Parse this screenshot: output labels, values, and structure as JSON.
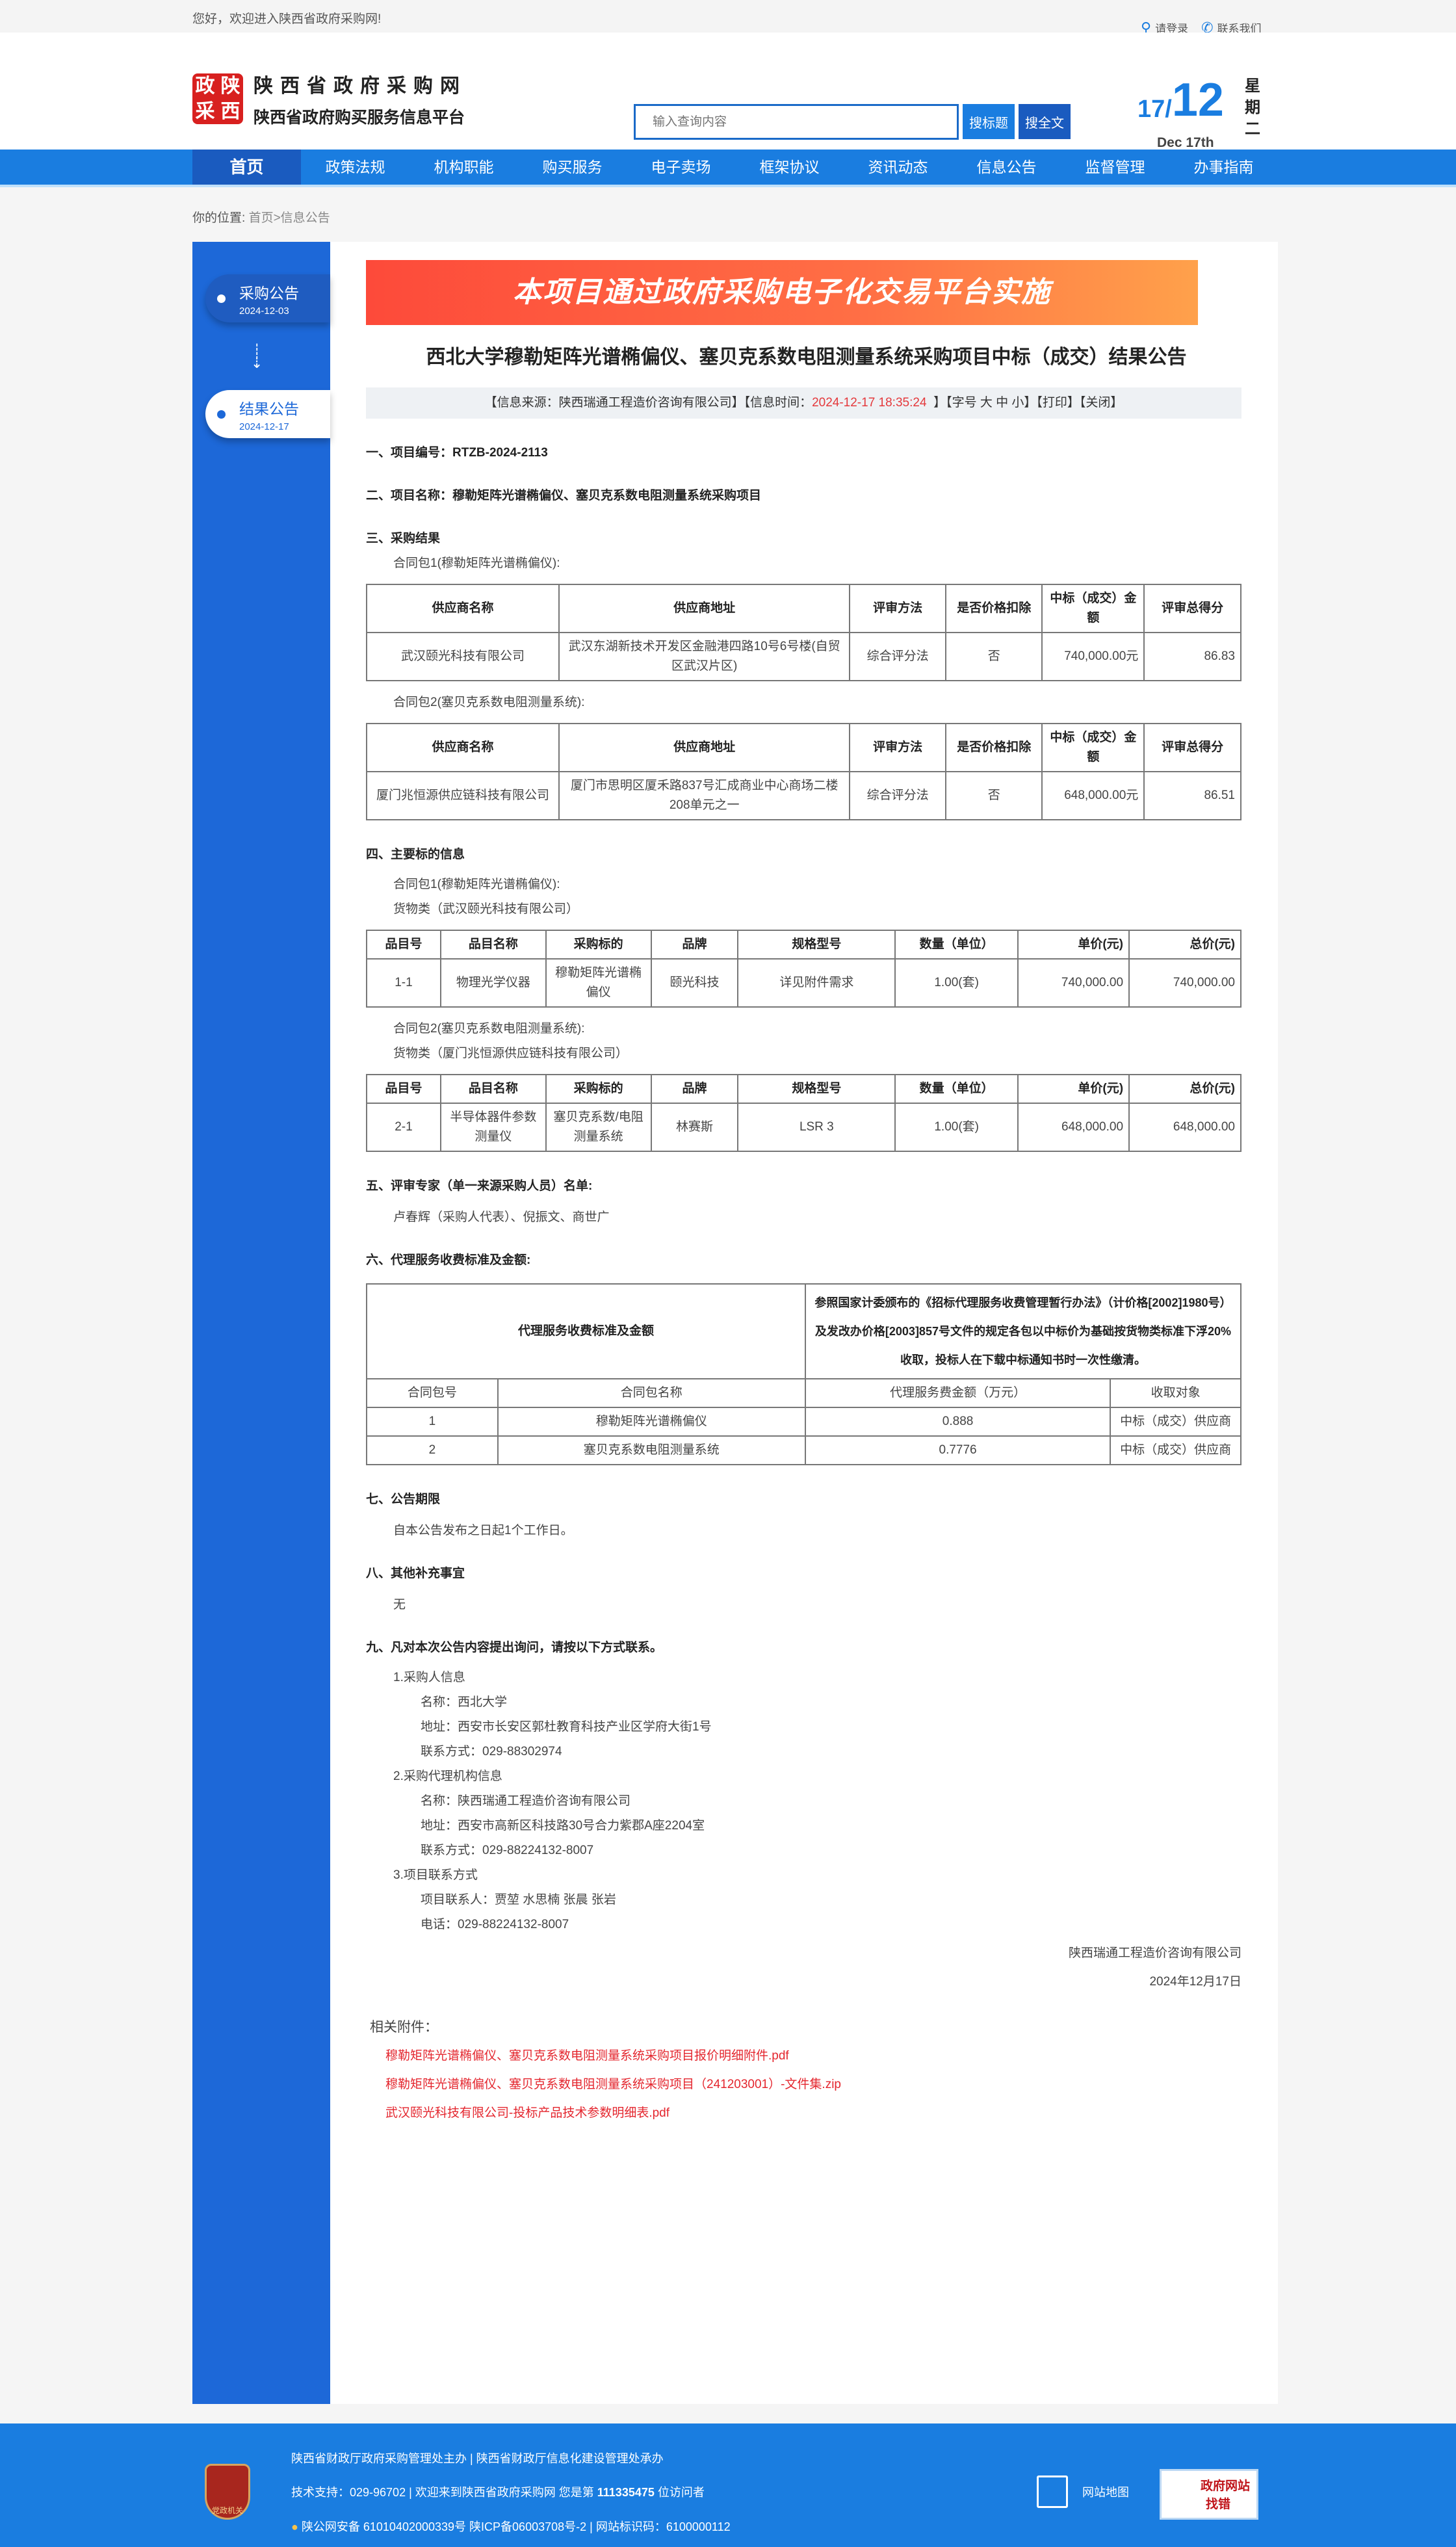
{
  "topbar": {
    "welcome": "您好，欢迎进入陕西省政府采购网!",
    "login": "请登录",
    "contact": "联系我们"
  },
  "header": {
    "logo_mark": [
      "政",
      "陕",
      "采",
      "西"
    ],
    "site_name": "陕西省政府采购网",
    "site_subtitle": "陕西省政府购买服务信息平台",
    "search_placeholder": "输入查询内容",
    "search_title_btn": "搜标题",
    "search_full_btn": "搜全文",
    "date_day": "17/",
    "date_month": "12",
    "date_en": "Dec 17th",
    "weekday": "星期二"
  },
  "nav": [
    "首页",
    "政策法规",
    "机构职能",
    "购买服务",
    "电子卖场",
    "框架协议",
    "资讯动态",
    "信息公告",
    "监督管理",
    "办事指南"
  ],
  "breadcrumb": {
    "label": "你的位置:",
    "home": "首页",
    "current": ">信息公告"
  },
  "sidebar": [
    {
      "label": "采购公告",
      "date": "2024-12-03"
    },
    {
      "label": "结果公告",
      "date": "2024-12-17"
    }
  ],
  "article": {
    "banner": "本项目通过政府采购电子化交易平台实施",
    "title": "西北大学穆勒矩阵光谱椭偏仪、塞贝克系数电阻测量系统采购项目中标（成交）结果公告",
    "info": {
      "source": "【信息来源：陕西瑞通工程造价咨询有限公司】【信息时间：",
      "time": "2024-12-17 18:35:24",
      "rest": "】【字号 大 中 小】【打印】【关闭】"
    },
    "s1": "一、项目编号：RTZB-2024-2113",
    "s2": "二、项目名称：穆勒矩阵光谱椭偏仪、塞贝克系数电阻测量系统采购项目",
    "s3": "三、采购结果",
    "pkg1": "合同包1(穆勒矩阵光谱椭偏仪):",
    "pkg2": "合同包2(塞贝克系数电阻测量系统):",
    "result_headers": [
      "供应商名称",
      "供应商地址",
      "评审方法",
      "是否价格扣除",
      "中标（成交）金额",
      "评审总得分"
    ],
    "result_rows": [
      [
        "武汉颐光科技有限公司",
        "武汉东湖新技术开发区金融港四路10号6号楼(自贸区武汉片区)",
        "综合评分法",
        "否",
        "740,000.00元",
        "86.83"
      ],
      [
        "厦门兆恒源供应链科技有限公司",
        "厦门市思明区厦禾路837号汇成商业中心商场二楼208单元之一",
        "综合评分法",
        "否",
        "648,000.00元",
        "86.51"
      ]
    ],
    "s4": "四、主要标的信息",
    "goods1": "货物类（武汉颐光科技有限公司）",
    "goods2": "货物类（厦门兆恒源供应链科技有限公司）",
    "item_headers": [
      "品目号",
      "品目名称",
      "采购标的",
      "品牌",
      "规格型号",
      "数量（单位）",
      "单价(元)",
      "总价(元)"
    ],
    "item_rows": [
      [
        "1-1",
        "物理光学仪器",
        "穆勒矩阵光谱椭偏仪",
        "颐光科技",
        "详见附件需求",
        "1.00(套)",
        "740,000.00",
        "740,000.00"
      ],
      [
        "2-1",
        "半导体器件参数测量仪",
        "塞贝克系数/电阻测量系统",
        "林赛斯",
        "LSR 3",
        "1.00(套)",
        "648,000.00",
        "648,000.00"
      ]
    ],
    "s5": "五、评审专家（单一来源采购人员）名单:",
    "experts": "卢春辉（采购人代表）、倪振文、商世广",
    "s6": "六、代理服务收费标准及金额:",
    "fee_label": "代理服务收费标准及金额",
    "fee_desc": "参照国家计委颁布的《招标代理服务收费管理暂行办法》（计价格[2002]1980号）及发改办价格[2003]857号文件的规定各包以中标价为基础按货物类标准下浮20%收取，投标人在下载中标通知书时一次性缴清。",
    "fee_headers": [
      "合同包号",
      "合同包名称",
      "代理服务费金额（万元）",
      "收取对象"
    ],
    "fee_rows": [
      [
        "1",
        "穆勒矩阵光谱椭偏仪",
        "0.888",
        "中标（成交）供应商"
      ],
      [
        "2",
        "塞贝克系数电阻测量系统",
        "0.7776",
        "中标（成交）供应商"
      ]
    ],
    "s7": "七、公告期限",
    "period": "自本公告发布之日起1个工作日。",
    "s8": "八、其他补充事宜",
    "other": "无",
    "s9": "九、凡对本次公告内容提出询问，请按以下方式联系。",
    "c1": "1.采购人信息",
    "c1_name": "名称：西北大学",
    "c1_addr": "地址：西安市长安区郭杜教育科技产业区学府大街1号",
    "c1_tel": "联系方式：029-88302974",
    "c2": "2.采购代理机构信息",
    "c2_name": "名称：陕西瑞通工程造价咨询有限公司",
    "c2_addr": "地址：西安市高新区科技路30号合力紫郡A座2204室",
    "c2_tel": "联系方式：029-88224132-8007",
    "c3": "3.项目联系方式",
    "c3_people": "项目联系人：贾堃 水思楠 张晨 张岩",
    "c3_tel": "电话：029-88224132-8007",
    "sign_company": "陕西瑞通工程造价咨询有限公司",
    "sign_date": "2024年12月17日",
    "attach_label": "相关附件：",
    "attachments": [
      "穆勒矩阵光谱椭偏仪、塞贝克系数电阻测量系统采购项目报价明细附件.pdf",
      "穆勒矩阵光谱椭偏仪、塞贝克系数电阻测量系统采购项目（241203001）-文件集.zip",
      "武汉颐光科技有限公司-投标产品技术参数明细表.pdf"
    ]
  },
  "footer": {
    "line1": "陕西省财政厅政府采购管理处主办 | 陕西省财政厅信息化建设管理处承办",
    "line2_pre": "技术支持：029-96702 | 欢迎来到陕西省政府采购网 您是第 ",
    "visitors": "111335475",
    "line2_post": " 位访问者",
    "line3": "陕公网安备 61010402000339号   陕ICP备06003708号-2  |  网站标识码：6100000112",
    "emblem": "党政机关",
    "sitemap": "网站地图",
    "gov_error": "政府网站",
    "gov_error2": "找错"
  },
  "colors": {
    "primary": "#1a7de0",
    "primary_dark": "#1a5bbf",
    "accent_red": "#e4393c"
  }
}
